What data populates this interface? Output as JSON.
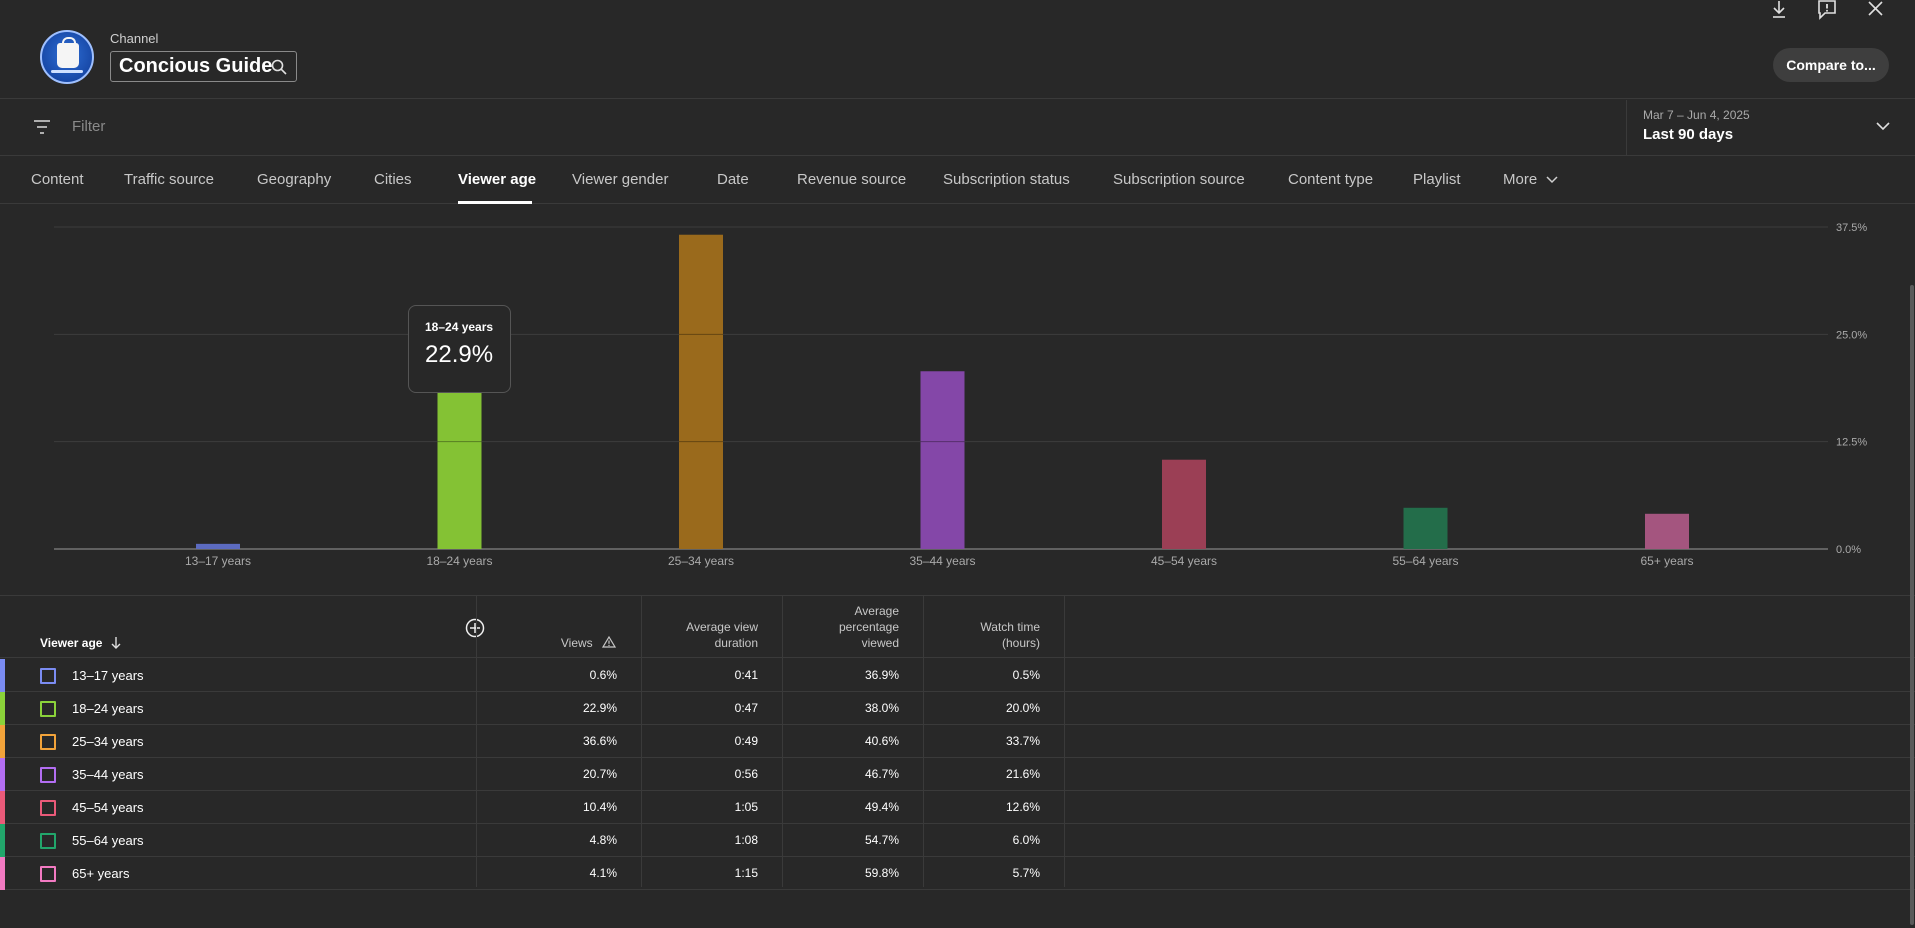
{
  "header": {
    "channel_label": "Channel",
    "channel_name": "Concious Guide",
    "compare_label": "Compare to..."
  },
  "filter": {
    "placeholder": "Filter",
    "date_sub": "Mar 7 – Jun 4, 2025",
    "date_main": "Last 90 days"
  },
  "tabs": [
    {
      "label": "Content"
    },
    {
      "label": "Traffic source"
    },
    {
      "label": "Geography"
    },
    {
      "label": "Cities"
    },
    {
      "label": "Viewer age"
    },
    {
      "label": "Viewer gender"
    },
    {
      "label": "Date"
    },
    {
      "label": "Revenue source"
    },
    {
      "label": "Subscription status"
    },
    {
      "label": "Subscription source"
    },
    {
      "label": "Content type"
    },
    {
      "label": "Playlist"
    },
    {
      "label": "More"
    }
  ],
  "active_tab": "Viewer age",
  "chart_data": {
    "type": "bar",
    "categories": [
      "13–17 years",
      "18–24 years",
      "25–34 years",
      "35–44 years",
      "45–54 years",
      "55–64 years",
      "65+ years"
    ],
    "values": [
      0.6,
      22.9,
      36.6,
      20.7,
      10.4,
      4.8,
      4.1
    ],
    "colors": [
      "#5c6bc0",
      "#84c234",
      "#9a6a1c",
      "#8447a8",
      "#9b3f55",
      "#236d4a",
      "#a4557f"
    ],
    "y_ticks": [
      "37.5%",
      "25.0%",
      "12.5%",
      "0.0%"
    ],
    "ylim": [
      0,
      37.5
    ],
    "grid": true,
    "tooltip": {
      "category": "18–24 years",
      "value": "22.9%"
    }
  },
  "table": {
    "headers": {
      "age": "Viewer age",
      "views": "Views",
      "avg_duration": [
        "Average view",
        "duration"
      ],
      "avg_pct": [
        "Average",
        "percentage",
        "viewed"
      ],
      "watch_time": [
        "Watch time",
        "(hours)"
      ]
    },
    "rows": [
      {
        "label": "13–17 years",
        "views": "0.6%",
        "duration": "0:41",
        "pct": "36.9%",
        "watch": "0.5%",
        "color": "#7b8cf2"
      },
      {
        "label": "18–24 years",
        "views": "22.9%",
        "duration": "0:47",
        "pct": "38.0%",
        "watch": "20.0%",
        "color": "#8bd23a"
      },
      {
        "label": "25–34 years",
        "views": "36.6%",
        "duration": "0:49",
        "pct": "40.6%",
        "watch": "33.7%",
        "color": "#f2a33a"
      },
      {
        "label": "35–44 years",
        "views": "20.7%",
        "duration": "0:56",
        "pct": "46.7%",
        "watch": "21.6%",
        "color": "#b36ef2"
      },
      {
        "label": "45–54 years",
        "views": "10.4%",
        "duration": "1:05",
        "pct": "49.4%",
        "watch": "12.6%",
        "color": "#ea5a79"
      },
      {
        "label": "55–64 years",
        "views": "4.8%",
        "duration": "1:08",
        "pct": "54.7%",
        "watch": "6.0%",
        "color": "#22a66b"
      },
      {
        "label": "65+ years",
        "views": "4.1%",
        "duration": "1:15",
        "pct": "59.8%",
        "watch": "5.7%",
        "color": "#f27ac2"
      }
    ]
  },
  "icons": {
    "download": "download-icon",
    "feedback": "feedback-icon",
    "close": "close-icon",
    "filter": "filter-icon",
    "search": "search-icon"
  }
}
